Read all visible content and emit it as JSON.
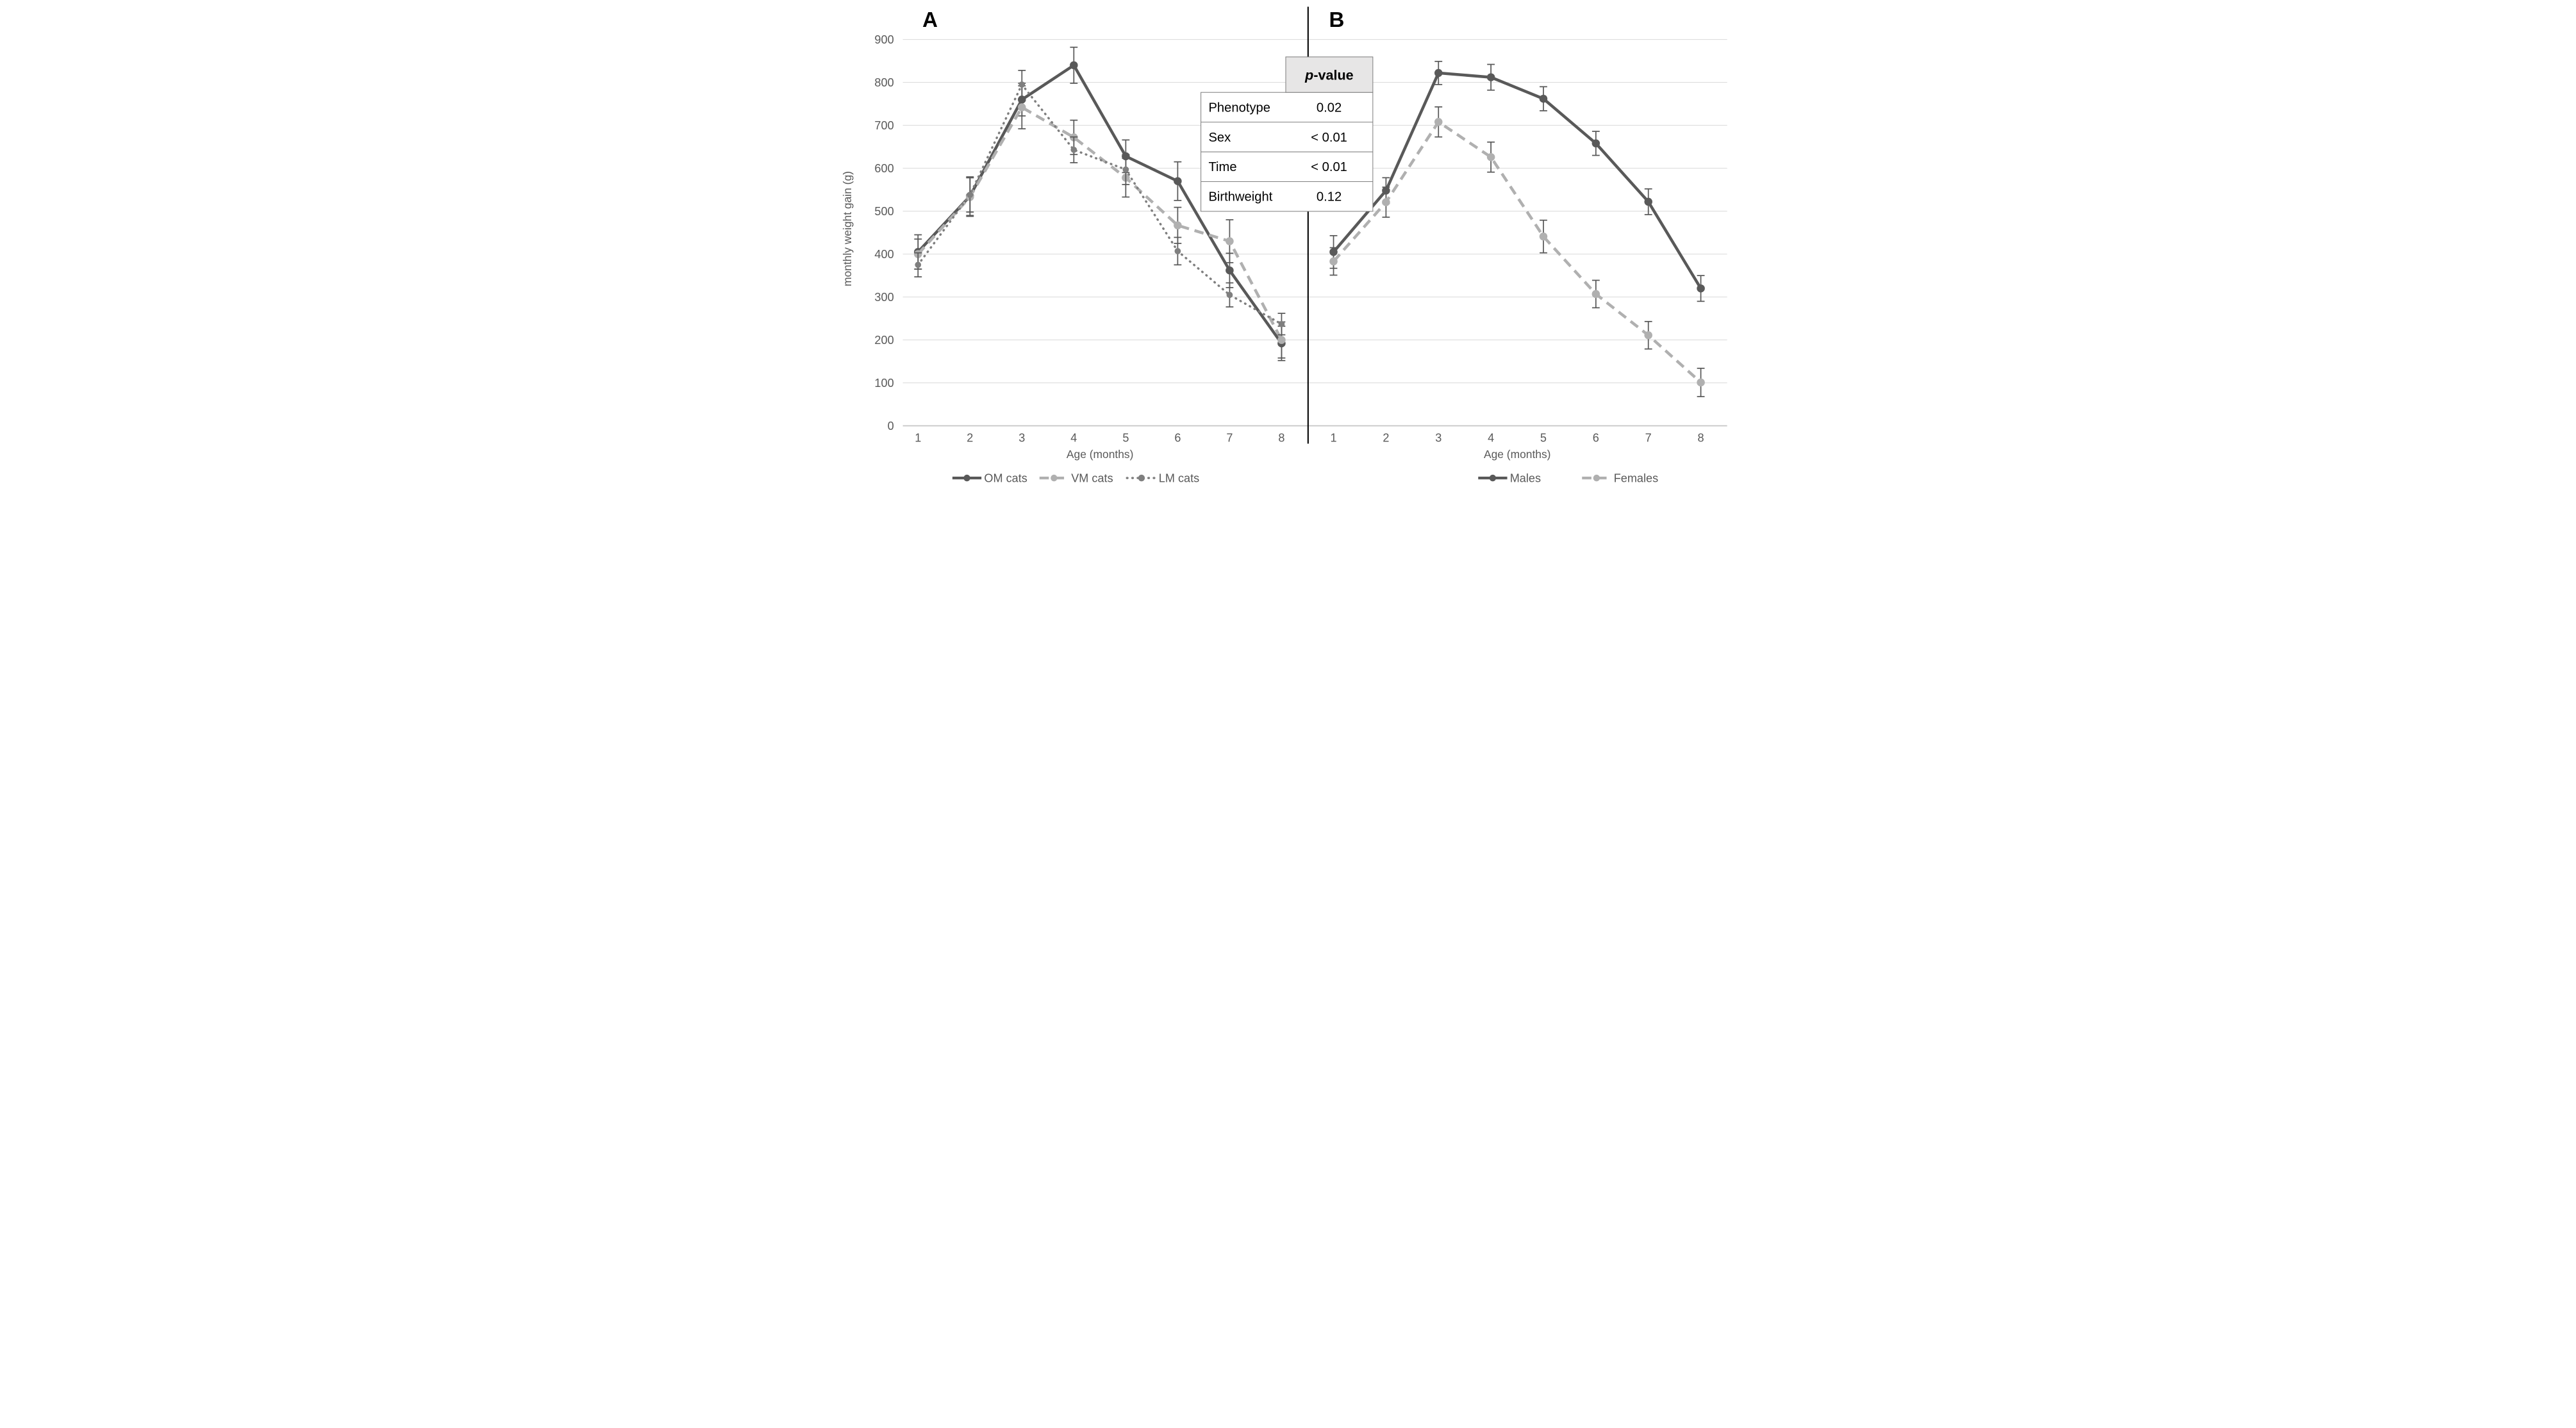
{
  "chart_data": [
    {
      "type": "line",
      "panel": "A",
      "x": [
        1,
        2,
        3,
        4,
        5,
        6,
        7,
        8
      ],
      "xlabel": "Age (months)",
      "ylabel": "monthly weight gain (g)",
      "ylim": [
        0,
        900
      ],
      "yticks": [
        0,
        100,
        200,
        300,
        400,
        500,
        600,
        700,
        800,
        900
      ],
      "grid": true,
      "legend_position": "bottom",
      "series": [
        {
          "name": "OM cats",
          "style": "solid",
          "color": "#595959",
          "marker_radius": 18,
          "values": [
            405,
            535,
            760,
            840,
            628,
            570,
            362,
            192
          ],
          "errors": [
            40,
            45,
            38,
            42,
            38,
            45,
            40,
            40
          ]
        },
        {
          "name": "VM cats",
          "style": "dashed",
          "color": "#b0b0b0",
          "marker_radius": 18,
          "values": [
            400,
            533,
            742,
            672,
            578,
            467,
            430,
            200
          ],
          "errors": [
            35,
            45,
            50,
            40,
            45,
            42,
            50,
            42
          ]
        },
        {
          "name": "LM cats",
          "style": "dotted",
          "color": "#7f7f7f",
          "marker_radius": 14,
          "values": [
            375,
            538,
            795,
            643,
            597,
            407,
            305,
            237
          ],
          "errors": [
            28,
            40,
            33,
            30,
            35,
            32,
            28,
            25
          ]
        }
      ]
    },
    {
      "type": "line",
      "panel": "B",
      "x": [
        1,
        2,
        3,
        4,
        5,
        6,
        7,
        8
      ],
      "xlabel": "Age (months)",
      "ylabel": "monthly weight gain (g)",
      "ylim": [
        0,
        900
      ],
      "yticks": [
        0,
        100,
        200,
        300,
        400,
        500,
        600,
        700,
        800,
        900
      ],
      "grid": true,
      "legend_position": "bottom",
      "series": [
        {
          "name": "Males",
          "style": "solid",
          "color": "#595959",
          "marker_radius": 18,
          "values": [
            405,
            548,
            822,
            812,
            762,
            658,
            522,
            320
          ],
          "errors": [
            38,
            30,
            27,
            30,
            28,
            28,
            30,
            30
          ]
        },
        {
          "name": "Females",
          "style": "dashed",
          "color": "#b0b0b0",
          "marker_radius": 18,
          "values": [
            383,
            521,
            708,
            626,
            441,
            307,
            211,
            101
          ],
          "errors": [
            32,
            35,
            35,
            35,
            38,
            32,
            32,
            33
          ]
        }
      ]
    }
  ],
  "stats_table": {
    "header_p": "p",
    "header_rest": "-value",
    "rows": [
      {
        "label": "Phenotype",
        "value": "0.02"
      },
      {
        "label": "Sex",
        "value": "< 0.01"
      },
      {
        "label": "Time",
        "value": "< 0.01"
      },
      {
        "label": "Birthweight",
        "value": "0.12"
      }
    ]
  },
  "colors": {
    "gridline": "#d9d9d9",
    "baseline": "#c6c6c6",
    "axis_text": "#595959",
    "error_bar": "#595959",
    "divider": "#000000",
    "table_border": "#808080",
    "table_header_fill": "#e7e6e6",
    "panel_letter": "#000000"
  }
}
